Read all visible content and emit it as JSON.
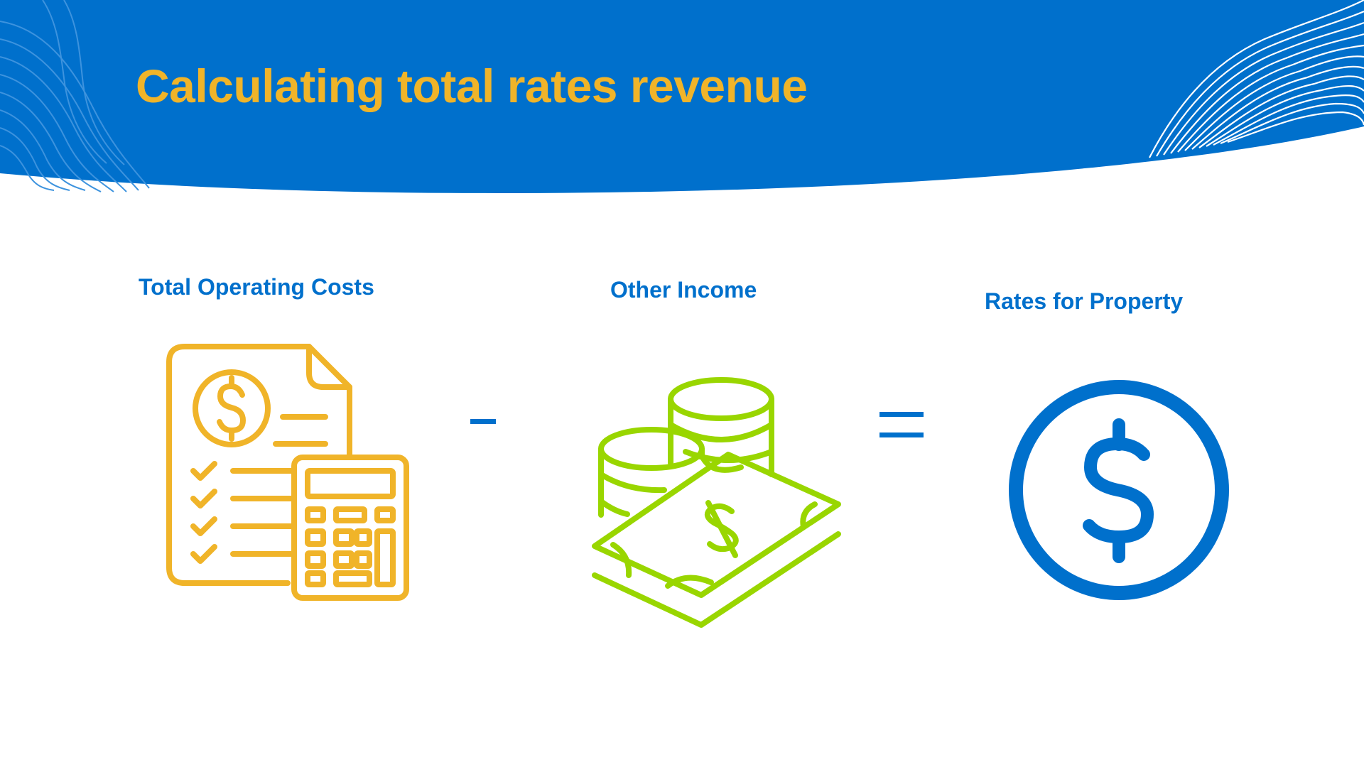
{
  "slide": {
    "title": "Calculating total rates revenue",
    "title_color": "#F0B429",
    "banner_color": "#0070CC",
    "accent_colors": {
      "costs": "#F0B429",
      "income": "#99D600",
      "rates": "#0070CC"
    }
  },
  "equation": {
    "terms": [
      {
        "label": "Total Operating Costs",
        "icon": "invoice-calculator-icon"
      },
      {
        "operator": "-"
      },
      {
        "label": "Other Income",
        "icon": "coins-banknote-icon"
      },
      {
        "operator": "="
      },
      {
        "label": "Rates for Property",
        "icon": "dollar-circle-icon"
      }
    ]
  }
}
